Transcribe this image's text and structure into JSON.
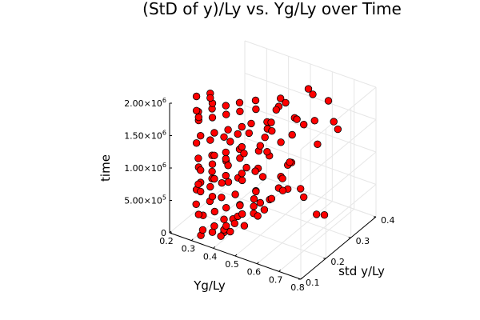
{
  "chart_data": {
    "type": "scatter",
    "projection": "3d",
    "title": "(StD of y)/Ly vs. Yg/Ly over Time",
    "xlabel": "Yg/Ly",
    "ylabel": "std y/Ly",
    "zlabel": "time",
    "xlim": [
      0.2,
      0.8
    ],
    "ylim": [
      0.1,
      0.4
    ],
    "zlim": [
      0,
      2000000
    ],
    "xticks": [
      "0.2",
      "0.3",
      "0.4",
      "0.5",
      "0.6",
      "0.7",
      "0.8"
    ],
    "yticks": [
      "0.1",
      "0.2",
      "0.3",
      "0.4"
    ],
    "zticks": [
      {
        "value": 0,
        "mant": "0",
        "exp": ""
      },
      {
        "value": 500000,
        "mant": "5.00×10",
        "exp": "5"
      },
      {
        "value": 1000000,
        "mant": "1.00×10",
        "exp": "6"
      },
      {
        "value": 1500000,
        "mant": "1.50×10",
        "exp": "6"
      },
      {
        "value": 2000000,
        "mant": "2.00×10",
        "exp": "6"
      }
    ],
    "grid": true,
    "legend": "none",
    "marker_color": "#ff0000",
    "marker_edge": "#000000",
    "series": [
      {
        "x": [
          0.32,
          0.35,
          0.38,
          0.4,
          0.42,
          0.45,
          0.34,
          0.37,
          0.41,
          0.44,
          0.47,
          0.5,
          0.33,
          0.36,
          0.39,
          0.43,
          0.46,
          0.52,
          0.31,
          0.35,
          0.38,
          0.42,
          0.48,
          0.55,
          0.3,
          0.34,
          0.37,
          0.41,
          0.44,
          0.5,
          0.33,
          0.36,
          0.4,
          0.45,
          0.49,
          0.58,
          0.31,
          0.35,
          0.39,
          0.43,
          0.47,
          0.53,
          0.32,
          0.36,
          0.4,
          0.44,
          0.5,
          0.56,
          0.3,
          0.34,
          0.38,
          0.42,
          0.46,
          0.51,
          0.33,
          0.37,
          0.41,
          0.45,
          0.52,
          0.6,
          0.31,
          0.35,
          0.39,
          0.43,
          0.48,
          0.55,
          0.32,
          0.36,
          0.4,
          0.44,
          0.49,
          0.57,
          0.3,
          0.34,
          0.38,
          0.42,
          0.47,
          0.54,
          0.33,
          0.37,
          0.41,
          0.46,
          0.51,
          0.63,
          0.31,
          0.35,
          0.39,
          0.44,
          0.5,
          0.58,
          0.32,
          0.36,
          0.4,
          0.45,
          0.53,
          0.61,
          0.3,
          0.34,
          0.38,
          0.43,
          0.48,
          0.56,
          0.33,
          0.37,
          0.42,
          0.47,
          0.55,
          0.66,
          0.31,
          0.35,
          0.4,
          0.46,
          0.52,
          0.6,
          0.68,
          0.72,
          0.7,
          0.65,
          0.62,
          0.74,
          0.57,
          0.64,
          0.69,
          0.59,
          0.71,
          0.63,
          0.67,
          0.6,
          0.55,
          0.58,
          0.53,
          0.5
        ],
        "y": [
          0.12,
          0.14,
          0.16,
          0.13,
          0.15,
          0.18,
          0.11,
          0.13,
          0.17,
          0.15,
          0.2,
          0.19,
          0.12,
          0.14,
          0.16,
          0.18,
          0.21,
          0.22,
          0.11,
          0.13,
          0.15,
          0.17,
          0.2,
          0.23,
          0.12,
          0.14,
          0.16,
          0.19,
          0.18,
          0.21,
          0.11,
          0.13,
          0.15,
          0.17,
          0.2,
          0.24,
          0.12,
          0.14,
          0.16,
          0.18,
          0.22,
          0.21,
          0.11,
          0.13,
          0.15,
          0.17,
          0.2,
          0.23,
          0.12,
          0.14,
          0.16,
          0.18,
          0.19,
          0.22,
          0.11,
          0.13,
          0.15,
          0.17,
          0.21,
          0.25,
          0.12,
          0.14,
          0.16,
          0.18,
          0.2,
          0.23,
          0.11,
          0.13,
          0.15,
          0.17,
          0.19,
          0.22,
          0.12,
          0.14,
          0.16,
          0.18,
          0.2,
          0.21,
          0.11,
          0.13,
          0.15,
          0.17,
          0.21,
          0.26,
          0.12,
          0.14,
          0.16,
          0.18,
          0.2,
          0.24,
          0.11,
          0.13,
          0.15,
          0.17,
          0.22,
          0.25,
          0.12,
          0.14,
          0.16,
          0.18,
          0.2,
          0.23,
          0.11,
          0.13,
          0.15,
          0.19,
          0.22,
          0.27,
          0.12,
          0.14,
          0.16,
          0.18,
          0.21,
          0.24,
          0.26,
          0.28,
          0.25,
          0.23,
          0.22,
          0.3,
          0.24,
          0.27,
          0.29,
          0.21,
          0.31,
          0.26,
          0.28,
          0.23,
          0.2,
          0.22,
          0.19,
          0.18
        ],
        "z": [
          40000,
          60000,
          30000,
          90000,
          120000,
          150000,
          180000,
          210000,
          240000,
          270000,
          300000,
          330000,
          360000,
          390000,
          420000,
          450000,
          480000,
          510000,
          540000,
          570000,
          600000,
          630000,
          660000,
          690000,
          720000,
          750000,
          780000,
          810000,
          840000,
          870000,
          900000,
          930000,
          960000,
          990000,
          1020000,
          1050000,
          1080000,
          1110000,
          1140000,
          1170000,
          1200000,
          1230000,
          1260000,
          1290000,
          1320000,
          1350000,
          1380000,
          1410000,
          1440000,
          1470000,
          1500000,
          1530000,
          1560000,
          1590000,
          1620000,
          1650000,
          1680000,
          1710000,
          1740000,
          1770000,
          1800000,
          1830000,
          1860000,
          1890000,
          1920000,
          1950000,
          1980000,
          2010000,
          2040000,
          2070000,
          2100000,
          2130000,
          2160000,
          2190000,
          70000,
          260000,
          410000,
          580000,
          760000,
          940000,
          1130000,
          1310000,
          1490000,
          1670000,
          1850000,
          2050000,
          140000,
          320000,
          500000,
          680000,
          860000,
          1040000,
          1220000,
          1400000,
          1580000,
          1760000,
          1940000,
          2120000,
          230000,
          440000,
          650000,
          880000,
          1090000,
          1300000,
          1510000,
          1720000,
          1930000,
          2140000,
          350000,
          610000,
          830000,
          1060000,
          1280000,
          1540000,
          1790000,
          2080000,
          400000,
          800000,
          1200000,
          1600000,
          2000000,
          2200000,
          250000,
          950000,
          1650000,
          550000,
          1350000,
          1150000,
          1800000,
          720000,
          460000,
          1050000,
          900000,
          1450000
        ]
      }
    ]
  }
}
